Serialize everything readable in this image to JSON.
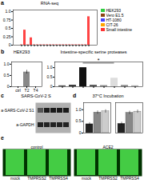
{
  "chart_data": [
    {
      "type": "bar",
      "title": "RNA-seq",
      "categories": [
        null,
        null,
        null,
        null,
        null,
        null,
        null,
        null,
        null,
        null,
        null,
        null,
        null,
        null,
        null,
        null,
        null,
        null,
        null,
        null,
        null,
        null
      ],
      "values": [
        0.02,
        0.45,
        0.02,
        0.22,
        0.02,
        0.02,
        0.02,
        0.02,
        0.02,
        0.02,
        0.02,
        0.02,
        0.02,
        0.02,
        0.02,
        0.02,
        0.02,
        0.02,
        0.02,
        0.02,
        0.02,
        0.85
      ],
      "colors": [
        "#ff9999",
        "#ff4444",
        "#ff9999",
        "#ff4444",
        "#ff9999",
        "#ff9999",
        "#ff9999",
        "#ff9999",
        "#ff9999",
        "#ff9999",
        "#ff9999",
        "#ff9999",
        "#ff9999",
        "#ff9999",
        "#ff9999",
        "#ff9999",
        "#ff9999",
        "#ff9999",
        "#ff9999",
        "#ff9999",
        "#ff9999",
        "#ff4444"
      ],
      "series": [
        {
          "name": "HEK293",
          "color": "#2ecc40"
        },
        {
          "name": "Vero E1.5",
          "color": "#8B4513"
        },
        {
          "name": "HT-1080",
          "color": "#4444ff"
        },
        {
          "name": "CIT-26",
          "color": "#FFA500"
        },
        {
          "name": "Small intestine",
          "color": "#ff3333"
        }
      ],
      "legend": "upper right",
      "ylim": [
        0,
        1.05
      ],
      "yticks": [
        0,
        0.25,
        0.5,
        0.75,
        {
          "value": 1.0,
          "label": "1.0"
        }
      ],
      "tick_labels": "y",
      "annotations": [
        "a"
      ]
    },
    {
      "type": "bar",
      "title": "HEK293",
      "categories": [
        "ctrl",
        "T2",
        "T4"
      ],
      "values": [
        0.0,
        0.65,
        0.0
      ],
      "errors": [
        null,
        0.08,
        null
      ],
      "colors": [
        "#cccccc",
        "#888888",
        "#cccccc"
      ],
      "ylim": [
        0,
        1.1
      ],
      "yticks": [
        0,
        0.5,
        {
          "value": 1.0,
          "label": "1.0"
        }
      ],
      "annotations": [
        "b"
      ]
    },
    {
      "type": "bar",
      "title": "Intestine-specific serine proteases",
      "categories": [
        null,
        null,
        null,
        null,
        null,
        null,
        null,
        null
      ],
      "values": [
        0.05,
        0.08,
        1.0,
        0.08,
        0.06,
        0.45,
        0.07,
        0.05
      ],
      "colors": [
        "#555555",
        "#333333",
        "#111111",
        "#555555",
        "#888888",
        "#dddddd",
        "#888888",
        "#aaaaaa"
      ],
      "ylim": [
        0,
        1.3
      ],
      "yticks": [
        0,
        0.5,
        {
          "value": 1.0,
          "label": "1.0"
        }
      ],
      "tick_labels": "y",
      "annotations": [
        {
          "text": "*",
          "x": [
            2,
            5
          ],
          "y": 1.22
        }
      ]
    },
    {
      "type": "blot",
      "title": "SARS-CoV-2 S",
      "series": [
        {
          "name": "a-SARS-CoV-2 S1",
          "colors": [
            "#555555",
            "#1a1a1a",
            "#1a1a1a",
            "#1a1a1a",
            "#1a1a1a"
          ]
        },
        {
          "name": "a-GAPDH",
          "colors": [
            "#222222",
            "#222222",
            "#222222",
            "#222222",
            "#222222"
          ]
        }
      ],
      "tick_labels": "y",
      "annotations": [
        "c"
      ]
    },
    {
      "type": "bar",
      "title": "37°C Incubation",
      "categories": [
        null,
        null
      ],
      "series": [
        {
          "color": "#222222",
          "values": [
            0.38,
            0.4
          ],
          "errors": [
            0.07,
            0.07
          ]
        },
        {
          "color": "#888888",
          "values": [
            0.88,
            0.87
          ],
          "errors": [
            0.07,
            0.07
          ]
        },
        {
          "color": "#cccccc",
          "values": [
            0.93,
            0.92
          ],
          "errors": [
            0.07,
            0.07
          ]
        }
      ],
      "ylim": [
        0,
        1.3
      ],
      "yticks": [
        0,
        0.5,
        {
          "value": 1.0,
          "label": "1.0"
        }
      ],
      "tick_labels": "y",
      "annotations": [
        "d"
      ]
    },
    {
      "type": "image",
      "series": [
        {
          "name": "control",
          "categories": [
            "mock",
            "TMPRSS2",
            "TMPRSS4"
          ]
        },
        {
          "name": "ACE2",
          "categories": [
            "mock",
            "TMPRSS2",
            "TMPRSS4"
          ]
        }
      ],
      "color": "#44cc44",
      "annotations": [
        "e"
      ]
    }
  ]
}
